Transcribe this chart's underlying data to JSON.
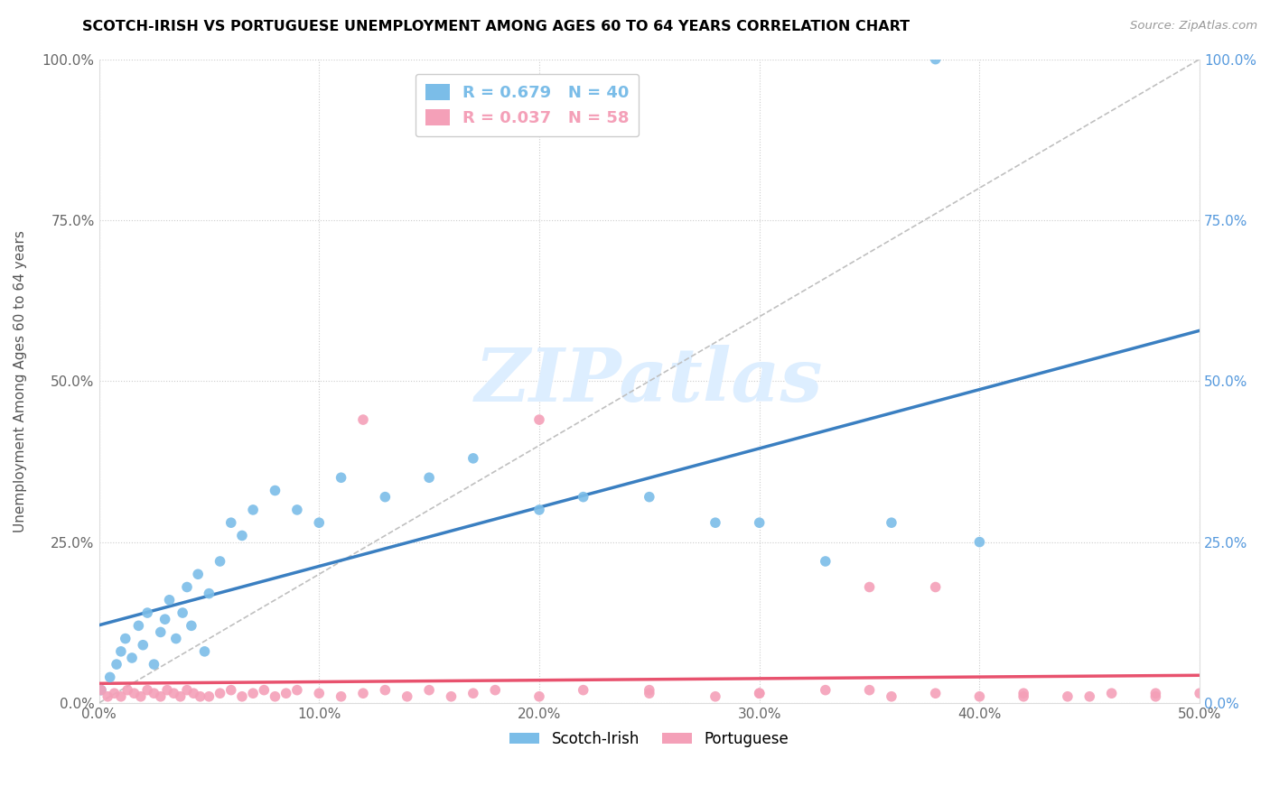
{
  "title": "SCOTCH-IRISH VS PORTUGUESE UNEMPLOYMENT AMONG AGES 60 TO 64 YEARS CORRELATION CHART",
  "source": "Source: ZipAtlas.com",
  "ylabel": "Unemployment Among Ages 60 to 64 years",
  "xlim": [
    0.0,
    0.5
  ],
  "ylim": [
    0.0,
    1.0
  ],
  "scotch_irish_R": 0.679,
  "scotch_irish_N": 40,
  "portuguese_R": 0.037,
  "portuguese_N": 58,
  "scotch_irish_color": "#7bbde8",
  "portuguese_color": "#f4a0b8",
  "scotch_irish_line_color": "#3a7fc1",
  "portuguese_line_color": "#e8526e",
  "diagonal_line_color": "#c0c0c0",
  "watermark_text": "ZIPatlas",
  "watermark_color": "#ddeeff",
  "right_axis_color": "#5599dd",
  "scotch_irish_x": [
    0.001,
    0.005,
    0.008,
    0.01,
    0.012,
    0.015,
    0.018,
    0.02,
    0.022,
    0.025,
    0.028,
    0.03,
    0.032,
    0.035,
    0.038,
    0.04,
    0.042,
    0.045,
    0.048,
    0.05,
    0.055,
    0.06,
    0.065,
    0.07,
    0.08,
    0.09,
    0.1,
    0.11,
    0.13,
    0.15,
    0.17,
    0.2,
    0.22,
    0.25,
    0.28,
    0.3,
    0.33,
    0.36,
    0.38,
    0.4
  ],
  "scotch_irish_y": [
    0.02,
    0.04,
    0.06,
    0.08,
    0.1,
    0.07,
    0.12,
    0.09,
    0.14,
    0.06,
    0.11,
    0.13,
    0.16,
    0.1,
    0.14,
    0.18,
    0.12,
    0.2,
    0.08,
    0.17,
    0.22,
    0.28,
    0.26,
    0.3,
    0.33,
    0.3,
    0.28,
    0.35,
    0.32,
    0.35,
    0.38,
    0.3,
    0.32,
    0.32,
    0.28,
    0.28,
    0.22,
    0.28,
    1.0,
    0.25
  ],
  "portuguese_x": [
    0.001,
    0.004,
    0.007,
    0.01,
    0.013,
    0.016,
    0.019,
    0.022,
    0.025,
    0.028,
    0.031,
    0.034,
    0.037,
    0.04,
    0.043,
    0.046,
    0.05,
    0.055,
    0.06,
    0.065,
    0.07,
    0.075,
    0.08,
    0.085,
    0.09,
    0.1,
    0.11,
    0.12,
    0.13,
    0.14,
    0.15,
    0.16,
    0.17,
    0.18,
    0.2,
    0.22,
    0.25,
    0.28,
    0.3,
    0.33,
    0.36,
    0.38,
    0.4,
    0.42,
    0.44,
    0.46,
    0.48,
    0.5,
    0.12,
    0.2,
    0.25,
    0.3,
    0.35,
    0.38,
    0.42,
    0.35,
    0.45,
    0.48
  ],
  "portuguese_y": [
    0.02,
    0.01,
    0.015,
    0.01,
    0.02,
    0.015,
    0.01,
    0.02,
    0.015,
    0.01,
    0.02,
    0.015,
    0.01,
    0.02,
    0.015,
    0.01,
    0.01,
    0.015,
    0.02,
    0.01,
    0.015,
    0.02,
    0.01,
    0.015,
    0.02,
    0.015,
    0.01,
    0.015,
    0.02,
    0.01,
    0.02,
    0.01,
    0.015,
    0.02,
    0.01,
    0.02,
    0.015,
    0.01,
    0.015,
    0.02,
    0.01,
    0.015,
    0.01,
    0.015,
    0.01,
    0.015,
    0.01,
    0.015,
    0.44,
    0.44,
    0.02,
    0.015,
    0.02,
    0.18,
    0.01,
    0.18,
    0.01,
    0.015
  ]
}
